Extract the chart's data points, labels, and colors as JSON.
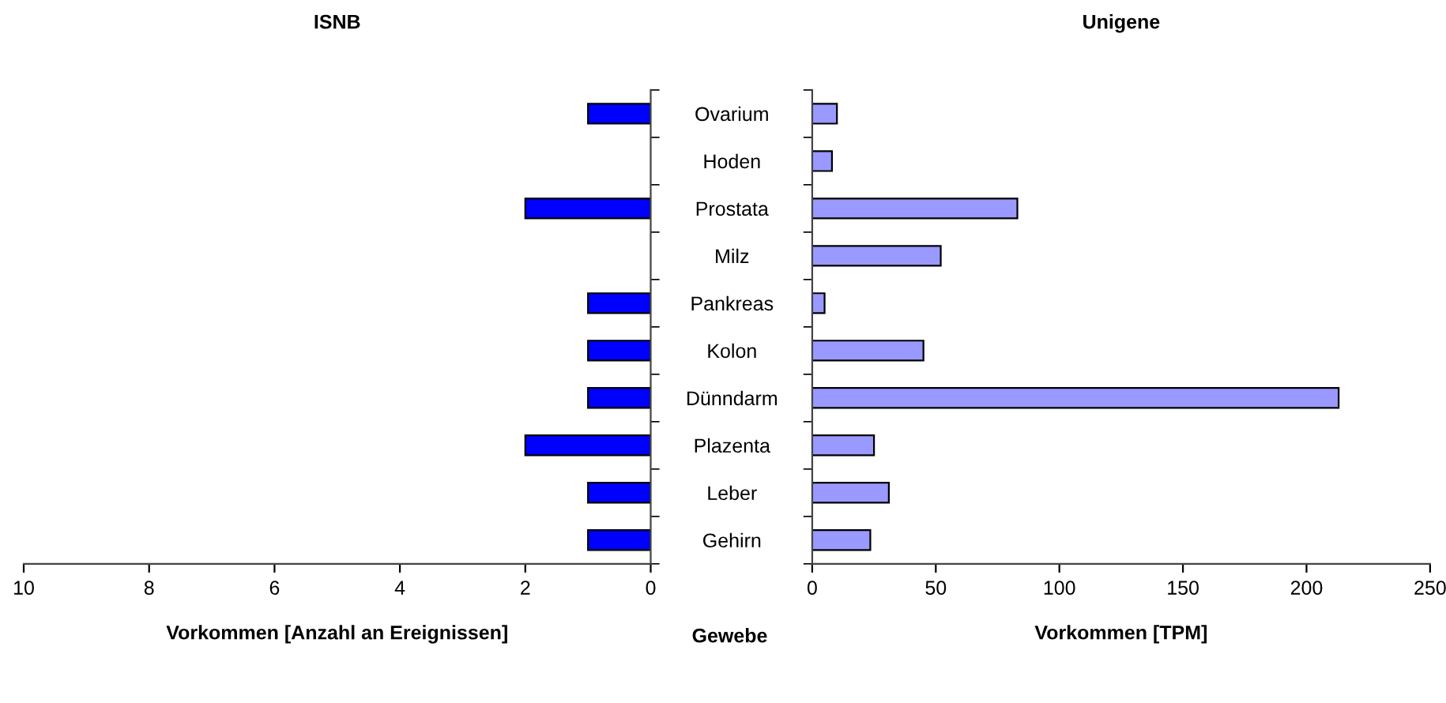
{
  "chart_data": [
    {
      "type": "bar",
      "orientation": "horizontal",
      "title": "ISNB",
      "xlabel": "Vorkommen [Anzahl an Ereignissen]",
      "ylabel": "Gewebe",
      "categories": [
        "Ovarium",
        "Hoden",
        "Prostata",
        "Milz",
        "Pankreas",
        "Kolon",
        "Dünndarm",
        "Plazenta",
        "Leber",
        "Gehirn"
      ],
      "values": [
        1,
        0,
        2,
        0,
        1,
        1,
        1,
        2,
        1,
        1
      ],
      "color": "#0000ff",
      "xlim": [
        10,
        0
      ],
      "xticks": [
        10,
        8,
        6,
        4,
        2,
        0
      ],
      "grid": false,
      "legend": false
    },
    {
      "type": "bar",
      "orientation": "horizontal",
      "title": "Unigene",
      "xlabel": "Vorkommen [TPM]",
      "categories": [
        null,
        null,
        null,
        null,
        null,
        null,
        null,
        null,
        null,
        null
      ],
      "values": [
        10,
        8,
        83,
        52,
        5,
        45,
        213,
        25,
        31,
        23.5
      ],
      "color": "#9999ff",
      "xlim": [
        0,
        250
      ],
      "xticks": [
        0,
        50,
        100,
        150,
        200,
        250
      ],
      "grid": false,
      "legend": false
    }
  ]
}
